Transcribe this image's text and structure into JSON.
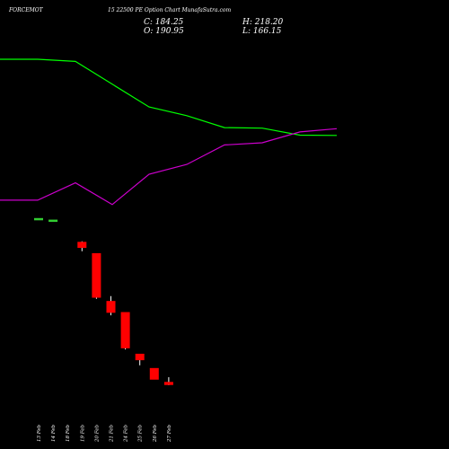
{
  "header": {
    "ticker": "FORCEMOT",
    "subtitle": "15 22500  PE Option Chart MunafaSutra.com",
    "close": "C: 184.25",
    "high": "H: 218.20",
    "open": "O: 190.95",
    "low": "L: 166.15"
  },
  "chart_data": {
    "type": "candlestick",
    "title": "FORCEMOT 15 22500 PE Option Chart MunafaSutra.com",
    "x": [
      "13 Feb",
      "14 Feb",
      "18 Feb",
      "19 Feb",
      "20 Feb",
      "21 Feb",
      "24 Feb",
      "25 Feb",
      "26 Feb",
      "27 Feb"
    ],
    "candles": [
      {
        "date": "13 Feb",
        "open": 605,
        "high": 605,
        "low": 605,
        "close": 605,
        "color": "#32cd32"
      },
      {
        "date": "14 Feb",
        "open": 597,
        "high": 597,
        "low": 597,
        "close": 597,
        "color": "#32cd32"
      },
      {
        "date": "18 Feb",
        "open": null,
        "high": null,
        "low": null,
        "close": null,
        "color": "#ff0000"
      },
      {
        "date": "19 Feb",
        "open": 485,
        "high": 490,
        "low": 440,
        "close": 459,
        "color": "#ff0000"
      },
      {
        "date": "20 Feb",
        "open": 428,
        "high": 428,
        "low": 200,
        "close": 208,
        "color": "#ff0000"
      },
      {
        "date": "21 Feb",
        "open": 187,
        "high": 214,
        "low": 117,
        "close": 132,
        "color": "#ff0000"
      },
      {
        "date": "24 Feb",
        "open": 131,
        "high": 131,
        "low": -55,
        "close": -47,
        "color": "#ff0000"
      },
      {
        "date": "25 Feb",
        "open": -79,
        "high": -79,
        "low": -135,
        "close": -107,
        "color": "#ff0000"
      },
      {
        "date": "26 Feb",
        "open": -151,
        "high": -151,
        "low": -205,
        "close": -205,
        "color": "#ff0000"
      },
      {
        "date": "27 Feb",
        "open": -221,
        "high": -195,
        "low": -235,
        "close": -232,
        "color": "#ff0000"
      }
    ],
    "series": [
      {
        "color": "#00ff00",
        "x": [
          0,
          42,
          84,
          166,
          208,
          250,
          292,
          334,
          375
        ],
        "values": [
          2000,
          2000,
          1980,
          1560,
          1480,
          1370,
          1365,
          1300,
          1298
        ]
      },
      {
        "color": "#cc00cc",
        "x": [
          0,
          42,
          84,
          125,
          166,
          208,
          250,
          292,
          334,
          375
        ],
        "values": [
          700,
          700,
          860,
          660,
          940,
          1030,
          1210,
          1230,
          1330,
          1360
        ]
      }
    ],
    "xlabel": "",
    "ylabel": "",
    "grid": false,
    "colors": {
      "background": "#000000",
      "bullish": "#32cd32",
      "bearish": "#ff0000",
      "ema_fast": "#00ff00",
      "ema_slow": "#cc00cc"
    }
  }
}
